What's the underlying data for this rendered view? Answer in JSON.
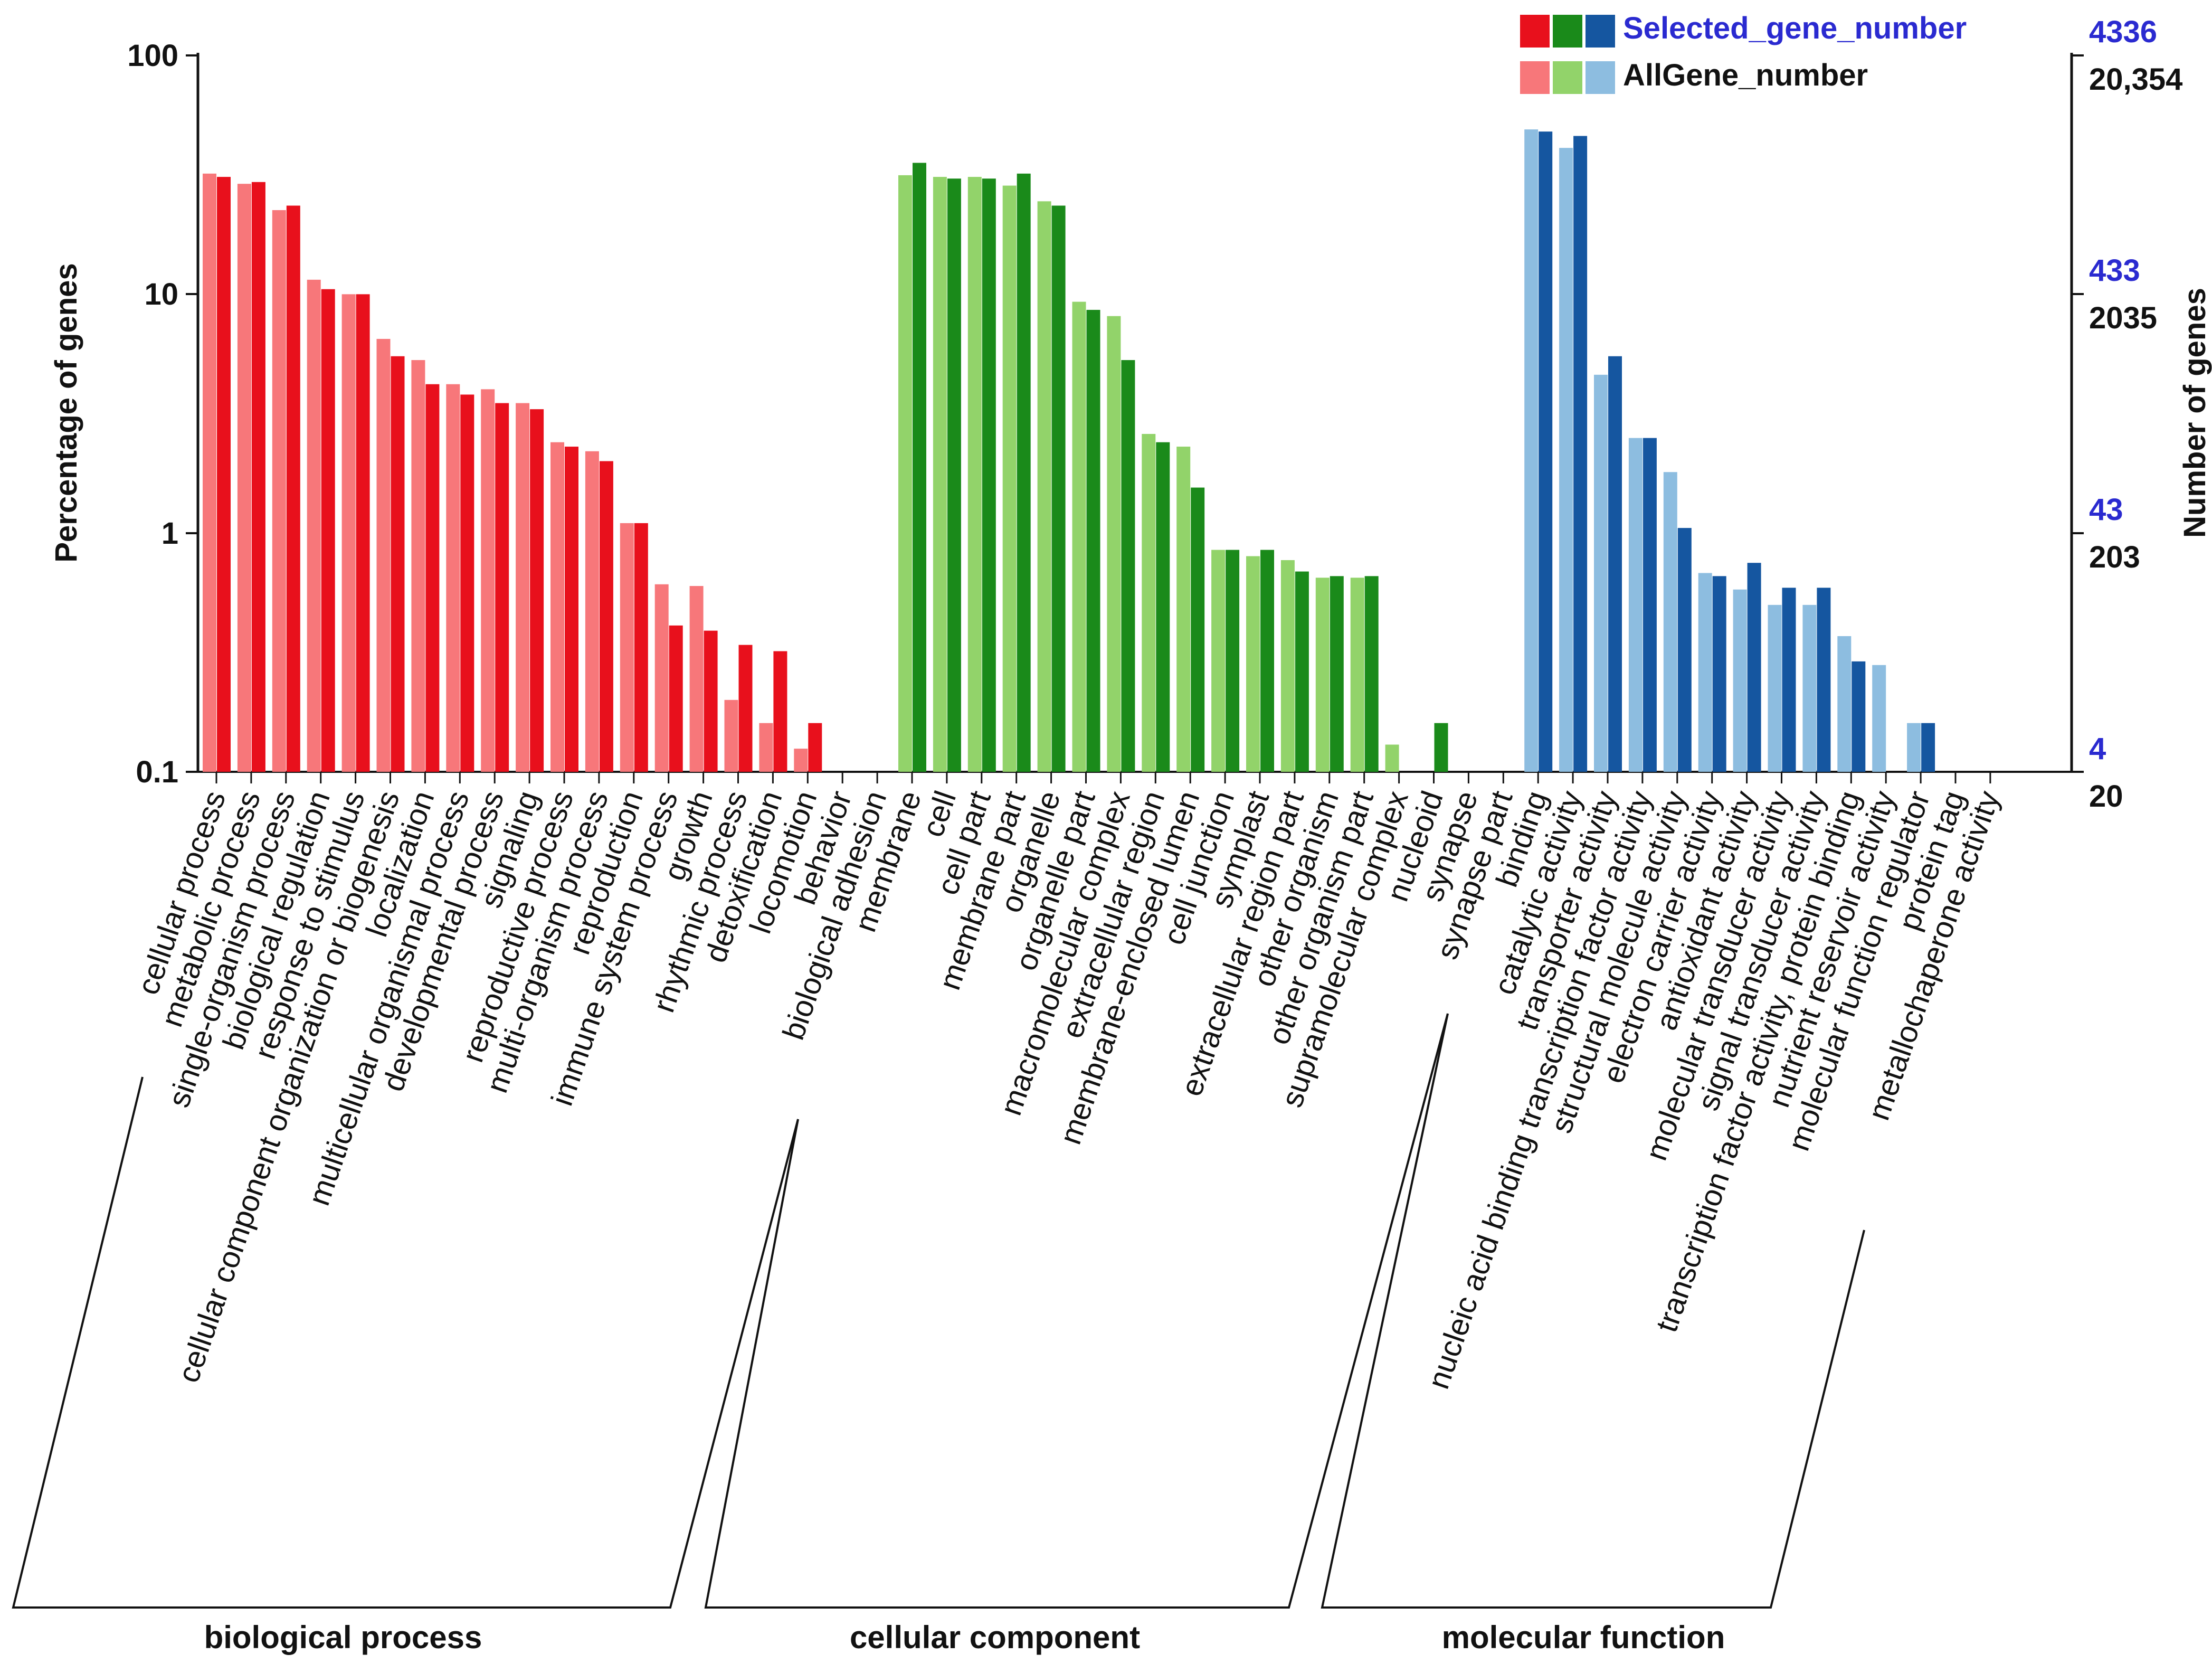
{
  "chart_data": {
    "type": "bar",
    "y_scale": "log",
    "ylabel": "Percentage of genes",
    "ylabel_right": "Number of genes",
    "ylim": [
      0.1,
      100
    ],
    "left_ticks": [
      "100",
      "10",
      "1",
      "0.1"
    ],
    "right_ticks": [
      {
        "selected": "4336",
        "all": "20,354"
      },
      {
        "selected": "433",
        "all": "2035"
      },
      {
        "selected": "43",
        "all": "203"
      },
      {
        "selected": "4",
        "all": "20"
      }
    ],
    "legend": [
      {
        "name": "Selected_gene_number",
        "colors": [
          "#e8101c",
          "#1a8a1a",
          "#1556a0"
        ],
        "text_color": "#2a2ad0"
      },
      {
        "name": "AllGene_number",
        "colors": [
          "#f7777a",
          "#92d36a",
          "#8dbde0"
        ],
        "text_color": "#111111"
      }
    ],
    "groups": [
      {
        "name": "biological process",
        "colors": {
          "all": "#f7777a",
          "selected": "#e8101c"
        },
        "categories": [
          "cellular process",
          "metabolic process",
          "single-organism process",
          "biological regulation",
          "response to stimulus",
          "cellular component organization or biogenesis",
          "localization",
          "multicellular organismal process",
          "developmental process",
          "signaling",
          "reproductive process",
          "multi-organism process",
          "reproduction",
          "immune system process",
          "growth",
          "rhythmic process",
          "detoxification",
          "locomotion",
          "behavior",
          "biological adhesion"
        ],
        "all": [
          32,
          29,
          22.5,
          11.5,
          10,
          6.5,
          5.3,
          4.2,
          4.0,
          3.5,
          2.4,
          2.2,
          1.1,
          0.61,
          0.6,
          0.2,
          0.16,
          0.125,
          null,
          null
        ],
        "selected": [
          31,
          29.5,
          23.5,
          10.5,
          10,
          5.5,
          4.2,
          3.8,
          3.5,
          3.3,
          2.3,
          2.0,
          1.1,
          0.41,
          0.39,
          0.34,
          0.32,
          0.16,
          null,
          null
        ]
      },
      {
        "name": "cellular component",
        "colors": {
          "all": "#92d36a",
          "selected": "#1a8a1a"
        },
        "categories": [
          "membrane",
          "cell",
          "cell part",
          "membrane part",
          "organelle",
          "organelle part",
          "macromolecular complex",
          "extracellular region",
          "membrane-enclosed lumen",
          "cell junction",
          "symplast",
          "extracellular region part",
          "other organism",
          "other organism part",
          "supramolecular complex",
          "nucleoid",
          "synapse",
          "synapse part"
        ],
        "all": [
          31.5,
          31,
          31,
          28.5,
          24.5,
          9.3,
          8.1,
          2.6,
          2.3,
          0.85,
          0.8,
          0.77,
          0.65,
          0.65,
          0.13,
          null,
          null,
          null
        ],
        "selected": [
          35.5,
          30.5,
          30.5,
          32,
          23.5,
          8.6,
          5.3,
          2.4,
          1.55,
          0.85,
          0.85,
          0.69,
          0.66,
          0.66,
          null,
          0.16,
          null,
          null
        ]
      },
      {
        "name": "molecular function",
        "colors": {
          "all": "#8dbde0",
          "selected": "#1556a0"
        },
        "categories": [
          "binding",
          "catalytic activity",
          "transporter activity",
          "nucleic acid binding transcription factor activity",
          "structural molecule activity",
          "electron carrier activity",
          "antioxidant activity",
          "molecular transducer activity",
          "signal transducer activity",
          "transcription factor activity, protein binding",
          "nutrient reservoir activity",
          "molecular function regulator",
          "protein tag",
          "metallochaperone activity"
        ],
        "all": [
          49,
          41,
          4.6,
          2.5,
          1.8,
          0.68,
          0.58,
          0.5,
          0.5,
          0.37,
          0.28,
          0.16,
          null,
          null
        ],
        "selected": [
          48,
          46,
          5.5,
          2.5,
          1.05,
          0.66,
          0.75,
          0.59,
          0.59,
          0.29,
          null,
          0.16,
          null,
          null
        ]
      }
    ]
  }
}
